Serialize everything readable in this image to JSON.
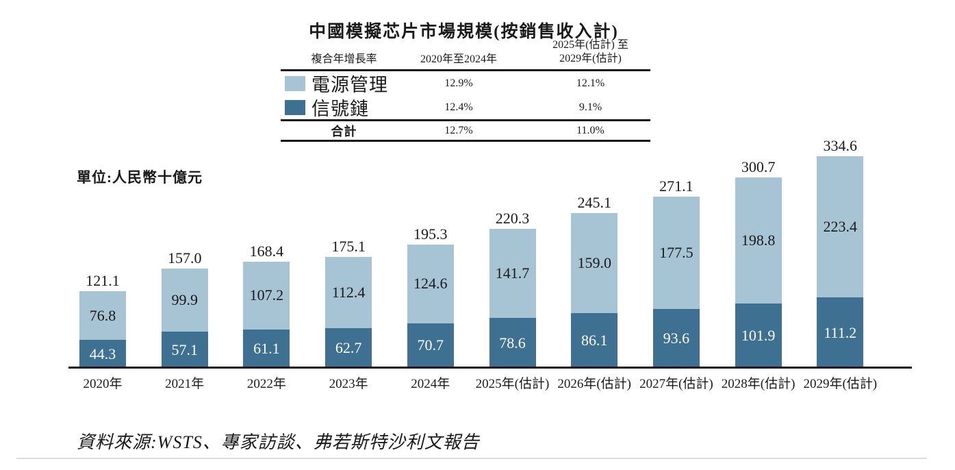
{
  "title": "中國模擬芯片市場規模(按銷售收入計)",
  "unit_label": "單位:人民幣十億元",
  "source_note": "資料來源:WSTS、專家訪談、弗若斯特沙利文報告",
  "colors": {
    "power_management": "#a6c4d4",
    "signal_chain": "#3e7092",
    "axis": "#161616",
    "label_on_dark": "#ffffff"
  },
  "cagr_table": {
    "header": {
      "col1": "複合年增長率",
      "col2": "2020年至2024年",
      "col3": "2025年(估計) 至\n2029年(估計)"
    },
    "rows": [
      {
        "label": "電源管理",
        "swatch": "light",
        "period1": "12.9%",
        "period2": "12.1%"
      },
      {
        "label": "信號鏈",
        "swatch": "dark",
        "period1": "12.4%",
        "period2": "9.1%"
      }
    ],
    "total": {
      "label": "合計",
      "period1": "12.7%",
      "period2": "11.0%"
    }
  },
  "chart_data": {
    "type": "bar",
    "stacked": true,
    "title": "中國模擬芯片市場規模(按銷售收入計)",
    "ylabel": "人民幣十億元",
    "grid": false,
    "legend_position": "table-top",
    "categories": [
      "2020年",
      "2021年",
      "2022年",
      "2023年",
      "2024年",
      "2025年(估計)",
      "2026年(估計)",
      "2027年(估計)",
      "2028年(估計)",
      "2029年(估計)"
    ],
    "series": [
      {
        "name": "電源管理",
        "role": "top-light",
        "values": [
          76.8,
          99.9,
          107.2,
          112.4,
          124.6,
          141.7,
          159.0,
          177.5,
          198.8,
          223.4
        ]
      },
      {
        "name": "信號鏈",
        "role": "bottom-dark",
        "values": [
          44.3,
          57.1,
          61.1,
          62.7,
          70.7,
          78.6,
          86.1,
          93.6,
          101.9,
          111.2
        ]
      }
    ],
    "totals": [
      121.1,
      157.0,
      168.4,
      175.1,
      195.3,
      220.3,
      245.1,
      271.1,
      300.7,
      334.6
    ],
    "ylim": [
      0,
      340
    ]
  }
}
